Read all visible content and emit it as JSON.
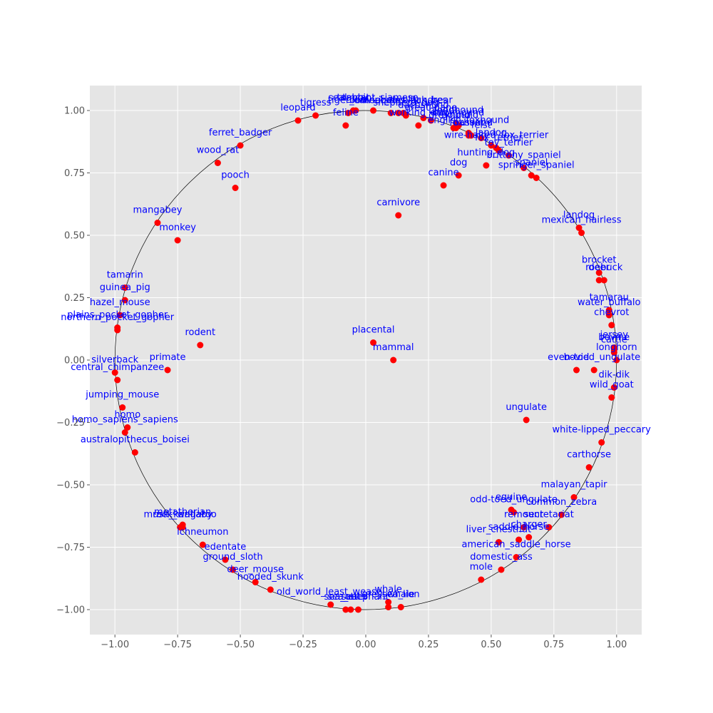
{
  "chart_data": {
    "type": "scatter",
    "title": "",
    "xlabel": "",
    "ylabel": "",
    "xlim": [
      -1.1,
      1.1
    ],
    "ylim": [
      -1.1,
      1.1
    ],
    "x_ticks": [
      -1.0,
      -0.75,
      -0.5,
      -0.25,
      0.0,
      0.25,
      0.5,
      0.75,
      1.0
    ],
    "y_ticks": [
      -1.0,
      -0.75,
      -0.5,
      -0.25,
      0.0,
      0.25,
      0.5,
      0.75,
      1.0
    ],
    "x_tick_labels": [
      "−1.00",
      "−0.75",
      "−0.50",
      "−0.25",
      "0.00",
      "0.25",
      "0.50",
      "0.75",
      "1.00"
    ],
    "y_tick_labels": [
      "−1.00",
      "−0.75",
      "−0.50",
      "−0.25",
      "0.00",
      "0.25",
      "0.50",
      "0.75",
      "1.00"
    ],
    "grid": true,
    "unit_circle": true,
    "background_color": "#e5e5e5",
    "grid_color": "#ffffff",
    "point_color": "#ff0000",
    "label_color": "#0000ff",
    "circle_color": "#000000",
    "points": [
      {
        "label": "placental",
        "x": 0.03,
        "y": 0.07
      },
      {
        "label": "mammal",
        "x": 0.11,
        "y": 0.0
      },
      {
        "label": "carnivore",
        "x": 0.13,
        "y": 0.58
      },
      {
        "label": "ungulate",
        "x": 0.64,
        "y": -0.24
      },
      {
        "label": "primate",
        "x": -0.79,
        "y": -0.04
      },
      {
        "label": "rodent",
        "x": -0.66,
        "y": 0.06
      },
      {
        "label": "dog",
        "x": 0.37,
        "y": 0.74
      },
      {
        "label": "canine",
        "x": 0.31,
        "y": 0.7
      },
      {
        "label": "hunting_dog",
        "x": 0.48,
        "y": 0.78
      },
      {
        "label": "pooch",
        "x": -0.52,
        "y": 0.69
      },
      {
        "label": "mangabey",
        "x": -0.83,
        "y": 0.55
      },
      {
        "label": "monkey",
        "x": -0.75,
        "y": 0.48
      },
      {
        "label": "tamarin",
        "x": -0.96,
        "y": 0.29
      },
      {
        "label": "guinea_pig",
        "x": -0.96,
        "y": 0.24
      },
      {
        "label": "hazel_mouse",
        "x": -0.98,
        "y": 0.18
      },
      {
        "label": "plains_pocket_gopher",
        "x": -0.99,
        "y": 0.13
      },
      {
        "label": "northern_pocket_gopher",
        "x": -0.99,
        "y": 0.12
      },
      {
        "label": "silverback",
        "x": -1.0,
        "y": -0.05
      },
      {
        "label": "central_chimpanzee",
        "x": -0.99,
        "y": -0.08
      },
      {
        "label": "jumping_mouse",
        "x": -0.97,
        "y": -0.19
      },
      {
        "label": "homo",
        "x": -0.95,
        "y": -0.27
      },
      {
        "label": "homo_sapiens_sapiens",
        "x": -0.96,
        "y": -0.29
      },
      {
        "label": "australopithecus_boisei",
        "x": -0.92,
        "y": -0.37
      },
      {
        "label": "metatherian",
        "x": -0.73,
        "y": -0.66
      },
      {
        "label": "musk_kangaroo",
        "x": -0.74,
        "y": -0.67
      },
      {
        "label": "rock_wallaby",
        "x": -0.73,
        "y": -0.67
      },
      {
        "label": "ichneumon",
        "x": -0.65,
        "y": -0.74
      },
      {
        "label": "edentate",
        "x": -0.56,
        "y": -0.8
      },
      {
        "label": "ground_sloth",
        "x": -0.53,
        "y": -0.84
      },
      {
        "label": "deer_mouse",
        "x": -0.44,
        "y": -0.89
      },
      {
        "label": "hooded_skunk",
        "x": -0.38,
        "y": -0.92
      },
      {
        "label": "old_world_least_weasel",
        "x": -0.14,
        "y": -0.98
      },
      {
        "label": "sea_otter",
        "x": -0.08,
        "y": -1.0
      },
      {
        "label": "seal",
        "x": -0.06,
        "y": -1.0
      },
      {
        "label": "sea_elephant",
        "x": -0.03,
        "y": -1.0
      },
      {
        "label": "whale",
        "x": 0.09,
        "y": -0.97
      },
      {
        "label": "grey_whale",
        "x": 0.09,
        "y": -0.99
      },
      {
        "label": "sea_lion",
        "x": 0.14,
        "y": -0.99
      },
      {
        "label": "mole",
        "x": 0.46,
        "y": -0.88
      },
      {
        "label": "domestic_ass",
        "x": 0.54,
        "y": -0.84
      },
      {
        "label": "american_saddle_horse",
        "x": 0.6,
        "y": -0.79
      },
      {
        "label": "liver_chestnut",
        "x": 0.53,
        "y": -0.73
      },
      {
        "label": "saddle_horse",
        "x": 0.61,
        "y": -0.72
      },
      {
        "label": "charger",
        "x": 0.65,
        "y": -0.71
      },
      {
        "label": "remount",
        "x": 0.63,
        "y": -0.67
      },
      {
        "label": "secretariat",
        "x": 0.73,
        "y": -0.67
      },
      {
        "label": "equine",
        "x": 0.58,
        "y": -0.6
      },
      {
        "label": "odd-toed_ungulate",
        "x": 0.59,
        "y": -0.61
      },
      {
        "label": "common_zebra",
        "x": 0.78,
        "y": -0.62
      },
      {
        "label": "malayan_tapir",
        "x": 0.83,
        "y": -0.55
      },
      {
        "label": "carthorse",
        "x": 0.89,
        "y": -0.43
      },
      {
        "label": "white-lipped_peccary",
        "x": 0.94,
        "y": -0.33
      },
      {
        "label": "wild_goat",
        "x": 0.98,
        "y": -0.15
      },
      {
        "label": "dik-dik",
        "x": 0.99,
        "y": -0.11
      },
      {
        "label": "bovid",
        "x": 0.84,
        "y": -0.04
      },
      {
        "label": "even-toed_ungulate",
        "x": 0.91,
        "y": -0.04
      },
      {
        "label": "longhorn",
        "x": 1.0,
        "y": 0.0
      },
      {
        "label": "cattle",
        "x": 0.99,
        "y": 0.03
      },
      {
        "label": "bovine",
        "x": 0.99,
        "y": 0.04
      },
      {
        "label": "jersey",
        "x": 0.99,
        "y": 0.05
      },
      {
        "label": "chevrot",
        "x": 0.98,
        "y": 0.14
      },
      {
        "label": "water_buffalo",
        "x": 0.97,
        "y": 0.18
      },
      {
        "label": "tamarau",
        "x": 0.97,
        "y": 0.2
      },
      {
        "label": "roebuck",
        "x": 0.95,
        "y": 0.32
      },
      {
        "label": "deer",
        "x": 0.93,
        "y": 0.32
      },
      {
        "label": "brocket",
        "x": 0.93,
        "y": 0.35
      },
      {
        "label": "mexican_hairless",
        "x": 0.86,
        "y": 0.51
      },
      {
        "label": "landog",
        "x": 0.85,
        "y": 0.53
      },
      {
        "label": "springer_spaniel",
        "x": 0.68,
        "y": 0.73
      },
      {
        "label": "spaniel",
        "x": 0.66,
        "y": 0.74
      },
      {
        "label": "brittany_spaniel",
        "x": 0.63,
        "y": 0.77
      },
      {
        "label": "toy_terrier",
        "x": 0.57,
        "y": 0.82
      },
      {
        "label": "fox_terrier",
        "x": 0.53,
        "y": 0.84
      },
      {
        "label": "wire-haired_fox_terrier",
        "x": 0.52,
        "y": 0.85
      },
      {
        "label": "lapdog",
        "x": 0.5,
        "y": 0.86
      },
      {
        "label": "feist",
        "x": 0.46,
        "y": 0.89
      },
      {
        "label": "foxhound",
        "x": 0.42,
        "y": 0.9
      },
      {
        "label": "english_foxhound",
        "x": 0.41,
        "y": 0.91
      },
      {
        "label": "basset",
        "x": 0.41,
        "y": 0.9
      },
      {
        "label": "hound",
        "x": 0.36,
        "y": 0.93
      },
      {
        "label": "greyhound",
        "x": 0.35,
        "y": 0.93
      },
      {
        "label": "coonhound",
        "x": 0.37,
        "y": 0.94
      },
      {
        "label": "bloodhound",
        "x": 0.36,
        "y": 0.95
      },
      {
        "label": "great_dane",
        "x": 0.26,
        "y": 0.96
      },
      {
        "label": "working_dog",
        "x": 0.21,
        "y": 0.94
      },
      {
        "label": "dachshund",
        "x": 0.23,
        "y": 0.97
      },
      {
        "label": "shepherd_dog",
        "x": 0.16,
        "y": 0.98
      },
      {
        "label": "american_black_bear",
        "x": 0.15,
        "y": 0.99
      },
      {
        "label": "bear",
        "x": 0.1,
        "y": 0.99
      },
      {
        "label": "bouvier_des_flandres",
        "x": 0.13,
        "y": 0.99
      },
      {
        "label": "seal_point_siamese",
        "x": 0.03,
        "y": 1.0
      },
      {
        "label": "tabby",
        "x": -0.04,
        "y": 1.0
      },
      {
        "label": "tomcat",
        "x": -0.05,
        "y": 1.0
      },
      {
        "label": "tiger_cat",
        "x": -0.07,
        "y": 0.99
      },
      {
        "label": "feline",
        "x": -0.08,
        "y": 0.94
      },
      {
        "label": "tigress",
        "x": -0.2,
        "y": 0.98
      },
      {
        "label": "leopard",
        "x": -0.27,
        "y": 0.96
      },
      {
        "label": "ferret_badger",
        "x": -0.5,
        "y": 0.86
      },
      {
        "label": "wood_rat",
        "x": -0.59,
        "y": 0.79
      }
    ]
  }
}
